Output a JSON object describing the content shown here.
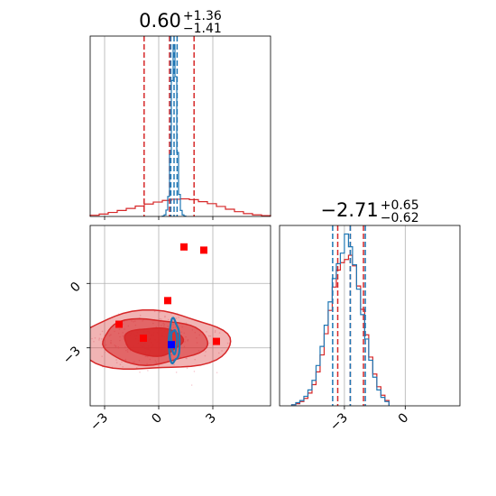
{
  "chart_data": {
    "type": "corner",
    "parameters": [
      "param_0",
      "param_1"
    ],
    "colors": {
      "series_a": "#d62728",
      "series_b": "#1f77b4",
      "markers": "#ff0000",
      "truth": "#0000ff",
      "grid": "#b0b0b0"
    },
    "grid": true,
    "panels": [
      {
        "id": "diag-0",
        "kind": "histogram",
        "title": {
          "main": "0.60",
          "sup": "+1.36",
          "sub": "−1.41"
        },
        "xlim": [
          -3.8,
          6.2
        ],
        "x_ticks": [
          -3,
          0,
          3
        ],
        "series": [
          {
            "name": "",
            "color": "#d62728",
            "quantiles": [
              -0.81,
              0.6,
              1.96
            ],
            "bin_edges": [
              -3.8,
              -3.3,
              -2.8,
              -2.3,
              -1.8,
              -1.3,
              -0.8,
              -0.3,
              0.2,
              0.7,
              1.2,
              1.7,
              2.2,
              2.7,
              3.2,
              3.7,
              4.2,
              4.7,
              5.2,
              5.7,
              6.2
            ],
            "counts": [
              0.3,
              0.6,
              1.0,
              1.5,
              2.0,
              2.6,
              3.1,
              3.6,
              4.0,
              4.3,
              4.4,
              4.2,
              3.7,
              3.2,
              2.5,
              1.8,
              1.2,
              0.7,
              0.4,
              0.2
            ]
          },
          {
            "name": "",
            "color": "#1f77b4",
            "quantiles": [
              0.67,
              0.85,
              1.02
            ],
            "bin_edges": [
              0.2,
              0.3,
              0.4,
              0.5,
              0.6,
              0.7,
              0.8,
              0.9,
              1.0,
              1.1,
              1.2,
              1.3,
              1.4,
              1.5
            ],
            "counts": [
              0.1,
              0.4,
              1.6,
              5.0,
              15.5,
              34.0,
              43.0,
              35.0,
              16.0,
              5.5,
              1.5,
              0.4,
              0.1
            ]
          }
        ]
      },
      {
        "id": "diag-1",
        "kind": "histogram",
        "title": {
          "main": "−2.71",
          "sup": "+0.65",
          "sub": "−0.62"
        },
        "xlim": [
          -6.2,
          2.7
        ],
        "x_ticks": [
          -3,
          0
        ],
        "series": [
          {
            "name": "",
            "color": "#d62728",
            "quantiles": [
              -3.33,
              -2.71,
              -2.06
            ],
            "bin_edges": [
              -5.6,
              -5.4,
              -5.2,
              -5.0,
              -4.8,
              -4.6,
              -4.4,
              -4.2,
              -4.0,
              -3.8,
              -3.6,
              -3.4,
              -3.2,
              -3.0,
              -2.8,
              -2.6,
              -2.4,
              -2.2,
              -2.0,
              -1.8,
              -1.6,
              -1.4,
              -1.2,
              -1.0,
              -0.8
            ],
            "counts": [
              0.1,
              0.2,
              0.4,
              0.7,
              1.2,
              2.0,
              3.2,
              4.8,
              6.8,
              9.0,
              11.2,
              12.8,
              13.5,
              13.8,
              14.2,
              13.2,
              11.3,
              9.1,
              6.7,
              4.6,
              3.0,
              1.8,
              1.0,
              0.5
            ]
          },
          {
            "name": "",
            "color": "#1f77b4",
            "quantiles": [
              -3.58,
              -2.71,
              -1.97
            ],
            "bin_edges": [
              -5.6,
              -5.4,
              -5.2,
              -5.0,
              -4.8,
              -4.6,
              -4.4,
              -4.2,
              -4.0,
              -3.8,
              -3.6,
              -3.4,
              -3.2,
              -3.0,
              -2.8,
              -2.6,
              -2.4,
              -2.2,
              -2.0,
              -1.8,
              -1.6,
              -1.4,
              -1.2,
              -1.0,
              -0.8
            ],
            "counts": [
              0.1,
              0.3,
              0.5,
              0.9,
              1.5,
              2.4,
              3.8,
              5.6,
              7.6,
              9.8,
              12.0,
              13.4,
              14.4,
              16.2,
              15.0,
              13.3,
              11.0,
              8.6,
              6.3,
              4.3,
              2.7,
              1.5,
              0.8,
              0.4
            ]
          }
        ]
      },
      {
        "id": "joint-1-0",
        "kind": "contour",
        "xlim": [
          -3.8,
          6.2
        ],
        "ylim": [
          -5.7,
          2.7
        ],
        "x_ticks": [
          -3,
          0,
          3
        ],
        "y_ticks": [
          0,
          -3
        ],
        "series_a": {
          "name": "",
          "color": "#d62728",
          "center": [
            -0.3,
            -2.7
          ],
          "sigma_levels": [
            [
              1.6,
              0.65
            ],
            [
              2.9,
              1.05
            ],
            [
              4.2,
              1.35
            ]
          ]
        },
        "series_b": {
          "name": "",
          "color": "#1f77b4",
          "center": [
            0.85,
            -2.7
          ],
          "sigma_levels": [
            [
              0.16,
              0.55
            ],
            [
              0.3,
              1.0
            ]
          ]
        },
        "markers": [
          {
            "x": -2.2,
            "y": -1.9
          },
          {
            "x": -0.85,
            "y": -2.55
          },
          {
            "x": 0.5,
            "y": -0.8
          },
          {
            "x": 1.4,
            "y": 1.7
          },
          {
            "x": 2.5,
            "y": 1.55
          },
          {
            "x": 3.2,
            "y": -2.7
          }
        ],
        "truth": {
          "x": 0.7,
          "y": -2.85
        }
      }
    ]
  }
}
